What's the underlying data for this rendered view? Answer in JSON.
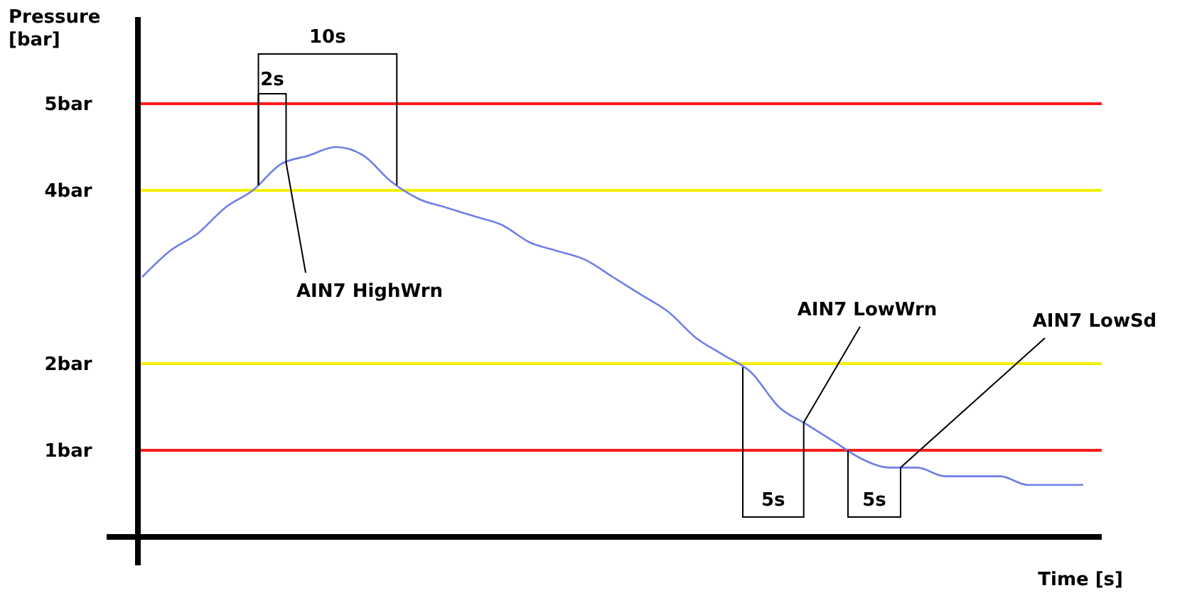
{
  "chart_data": {
    "type": "line",
    "ylabel": "Pressure\n[bar]",
    "xlabel": "Time [s]",
    "categories": [
      null,
      null,
      null,
      null,
      null,
      null,
      null,
      null,
      null,
      null,
      null,
      null,
      null,
      null,
      null,
      null,
      null,
      null,
      null,
      null,
      null,
      null,
      null,
      null,
      null,
      null,
      null,
      null,
      null,
      null,
      null,
      null,
      null,
      null,
      null
    ],
    "series": [
      {
        "color": "#6f7fe8",
        "values": [
          3.0,
          3.3,
          3.5,
          3.8,
          4.0,
          4.3,
          4.4,
          4.5,
          4.4,
          4.1,
          3.9,
          3.8,
          3.7,
          3.6,
          3.4,
          3.3,
          3.2,
          3.0,
          2.8,
          2.6,
          2.3,
          2.1,
          1.9,
          1.5,
          1.3,
          1.1,
          0.9,
          0.8,
          0.8,
          0.7,
          0.7,
          0.7,
          0.6,
          0.6,
          0.6
        ]
      }
    ],
    "ylim": [
      0,
      6
    ],
    "yticks": [
      {
        "value": 5,
        "label": "5bar"
      },
      {
        "value": 4,
        "label": "4bar"
      },
      {
        "value": 2,
        "label": "2bar"
      },
      {
        "value": 1,
        "label": "1bar"
      }
    ],
    "tick_labels": "y",
    "grid": false,
    "marker": "none",
    "line_style": "solid",
    "ref_lines": [
      {
        "axis": "y",
        "value": 5,
        "color": "#ff1a1a"
      },
      {
        "axis": "y",
        "value": 4,
        "color": "#f5f000"
      },
      {
        "axis": "y",
        "value": 2,
        "color": "#f5f000"
      },
      {
        "axis": "y",
        "value": 1,
        "color": "#ff1a1a"
      }
    ],
    "annotations": [
      "10s",
      "2s",
      "AIN7 HighWrn",
      "AIN7 LowWrn",
      "5s",
      "AIN7 LowSd",
      "5s"
    ]
  }
}
